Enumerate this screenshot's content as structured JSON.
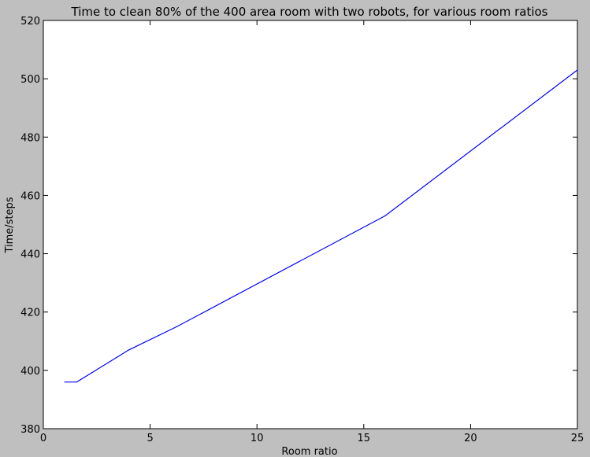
{
  "chart_data": {
    "type": "line",
    "title": "Time to clean 80% of the 400 area room with two robots, for various room ratios",
    "xlabel": "Room ratio",
    "ylabel": "Time/steps",
    "xlim": [
      0,
      25
    ],
    "ylim": [
      380,
      520
    ],
    "xticks": [
      0,
      5,
      10,
      15,
      20,
      25
    ],
    "yticks": [
      380,
      400,
      420,
      440,
      460,
      480,
      500,
      520
    ],
    "grid": false,
    "series": [
      {
        "color": "#0000ff",
        "x": [
          1,
          1.5625,
          4,
          6.25,
          16,
          25
        ],
        "y": [
          396,
          396,
          407,
          415,
          453,
          503
        ]
      }
    ]
  }
}
